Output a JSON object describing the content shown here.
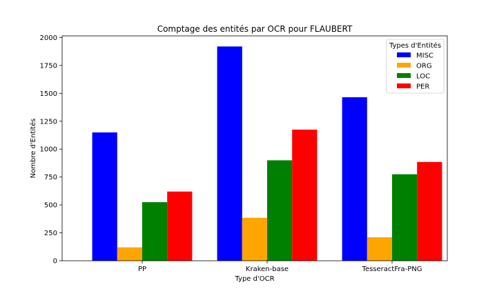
{
  "chart_data": {
    "type": "bar",
    "title": "Comptage des entités par OCR pour FLAUBERT",
    "xlabel": "Type d'OCR",
    "ylabel": "Nombre d'Entités",
    "categories": [
      "PP",
      "Kraken-base",
      "TesseractFra-PNG"
    ],
    "series": [
      {
        "name": "MISC",
        "color": "#0000ff",
        "values": [
          1150,
          1920,
          1465
        ]
      },
      {
        "name": "ORG",
        "color": "#ffa500",
        "values": [
          120,
          385,
          210
        ]
      },
      {
        "name": "LOC",
        "color": "#008000",
        "values": [
          525,
          900,
          775
        ]
      },
      {
        "name": "PER",
        "color": "#ff0000",
        "values": [
          620,
          1175,
          885
        ]
      }
    ],
    "ylim": [
      0,
      2015
    ],
    "yticks": [
      0,
      250,
      500,
      750,
      1000,
      1250,
      1500,
      1750,
      2000
    ],
    "ytick_labels": [
      "0",
      "250",
      "500",
      "750",
      "1000",
      "1250",
      "1500",
      "1750",
      "2000"
    ],
    "grid": false,
    "legend": {
      "title": "Types d'Entités",
      "placement": "top-right"
    }
  }
}
